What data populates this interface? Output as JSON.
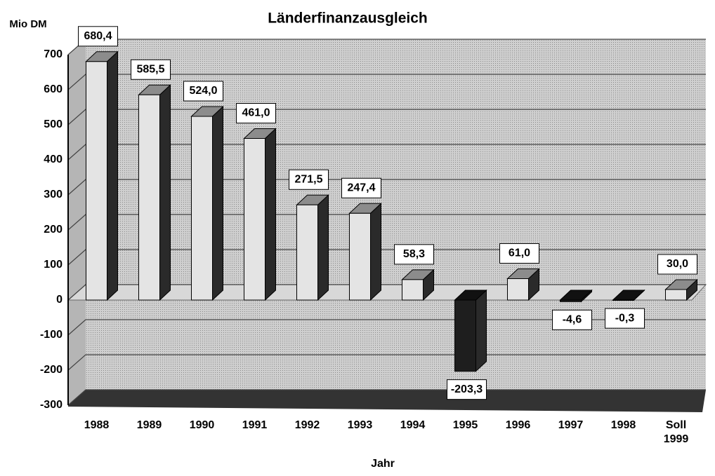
{
  "chart_data": {
    "type": "bar3d",
    "title": "Länderfinanzausgleich",
    "y_label": "Mio DM",
    "x_label": "Jahr",
    "categories": [
      "1988",
      "1989",
      "1990",
      "1991",
      "1992",
      "1993",
      "1994",
      "1995",
      "1996",
      "1997",
      "1998",
      "Soll 1999"
    ],
    "values": [
      680.4,
      585.5,
      524.0,
      461.0,
      271.5,
      247.4,
      58.3,
      -203.3,
      61.0,
      -4.6,
      -0.3,
      30.0
    ],
    "value_labels": [
      "680,4",
      "585,5",
      "524,0",
      "461,0",
      "271,5",
      "247,4",
      "58,3",
      "-203,3",
      "61,0",
      "-4,6",
      "-0,3",
      "30,0"
    ],
    "color": "#e4e4e4",
    "negative_color": "#1e1e1e",
    "ylim": [
      -300,
      700
    ],
    "yticks": [
      -300,
      -200,
      -100,
      0,
      100,
      200,
      300,
      400,
      500,
      600,
      700
    ],
    "grid": true
  }
}
